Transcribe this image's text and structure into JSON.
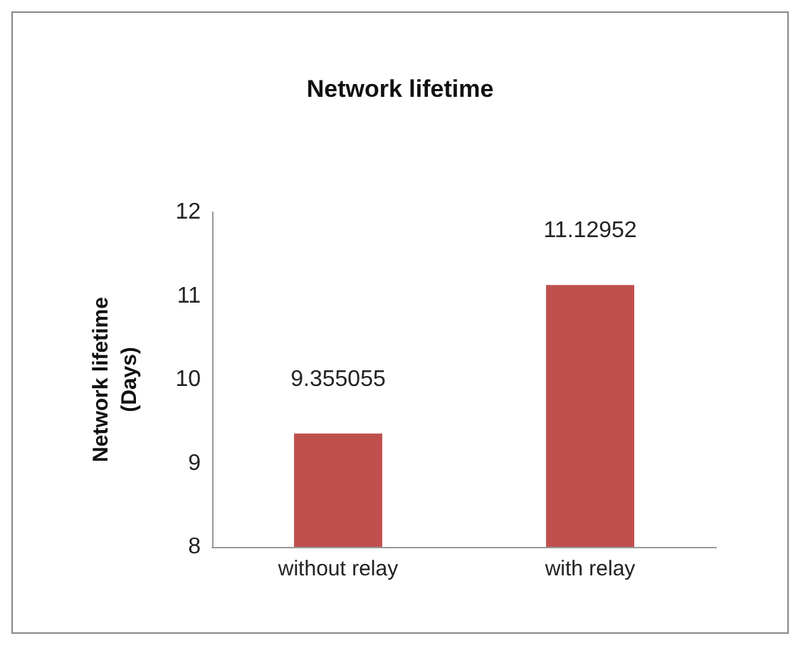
{
  "chart_data": {
    "type": "bar",
    "title": "Network lifetime",
    "ylabel": "Network lifetime\n(Days)",
    "categories": [
      "without relay",
      "with relay"
    ],
    "values": [
      9.355055,
      11.12952
    ],
    "color": "#c0504d",
    "ylim": [
      8,
      12
    ],
    "yticks": [
      8,
      9,
      10,
      11,
      12
    ],
    "grid": false,
    "data_labels": true
  }
}
